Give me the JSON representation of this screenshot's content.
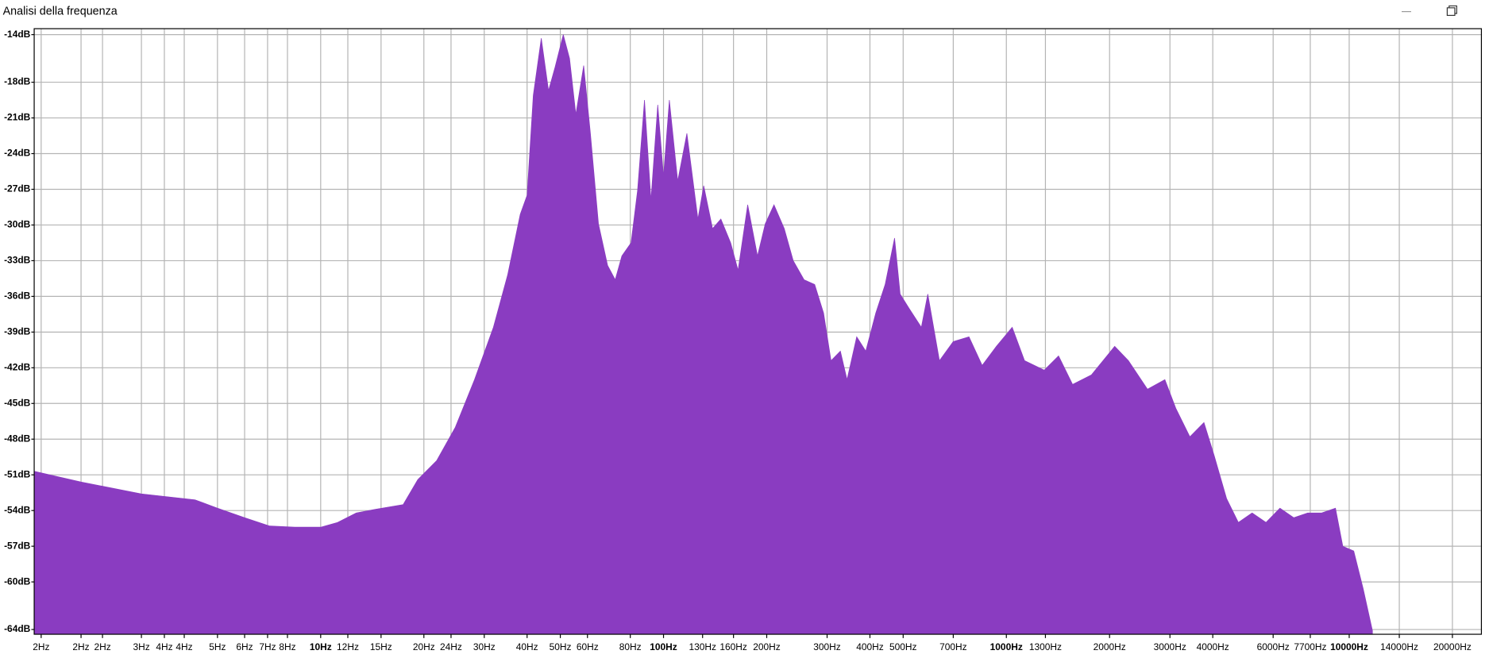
{
  "chart_data": {
    "type": "area",
    "title": "Analisi della frequenza",
    "xscale": "log",
    "grid": true,
    "color": "#8a3cc1",
    "xlim": [
      1.46,
      24300
    ],
    "ylim": [
      -64.4,
      -13.5
    ],
    "x": [
      1.46,
      2,
      3,
      4.3,
      5.0,
      6,
      7.1,
      8.4,
      10,
      11.2,
      12.7,
      14.4,
      17.4,
      19.2,
      21.8,
      24.7,
      28.1,
      31.9,
      35.1,
      38.2,
      40,
      41.7,
      44,
      46.2,
      48.3,
      51,
      53.2,
      55.5,
      58.5,
      61.2,
      64.6,
      68.7,
      72.3,
      75.6,
      80.4,
      84,
      88,
      91.9,
      96.2,
      100,
      104,
      110,
      117,
      126,
      131,
      139,
      147,
      157,
      165,
      176,
      188,
      198,
      210,
      225,
      239,
      257,
      276,
      293,
      308,
      328,
      343,
      366,
      389,
      416,
      443,
      472,
      490,
      520,
      565,
      590,
      638,
      700,
      778,
      850,
      935,
      1040,
      1130,
      1290,
      1420,
      1560,
      1770,
      2070,
      2270,
      2580,
      2900,
      3120,
      3430,
      3770,
      4040,
      4390,
      4750,
      5210,
      5720,
      6280,
      6890,
      7570,
      8310,
      9120,
      9580,
      10310,
      10990,
      11690
    ],
    "values": [
      -50.7,
      -51.6,
      -52.6,
      -53.1,
      -53.8,
      -54.6,
      -55.3,
      -55.4,
      -55.4,
      -55.0,
      -54.2,
      -53.9,
      -53.5,
      -51.4,
      -49.8,
      -47.0,
      -43.0,
      -38.6,
      -34.2,
      -29.1,
      -27.5,
      -19.1,
      -14.3,
      -18.7,
      -16.7,
      -14.0,
      -16.0,
      -20.7,
      -16.6,
      -22.3,
      -29.9,
      -33.4,
      -34.6,
      -32.6,
      -31.5,
      -27.1,
      -19.5,
      -27.9,
      -19.9,
      -25.9,
      -19.5,
      -26.3,
      -22.3,
      -29.5,
      -26.7,
      -30.3,
      -29.5,
      -31.5,
      -33.8,
      -28.3,
      -32.6,
      -29.9,
      -28.3,
      -30.3,
      -33.0,
      -34.6,
      -35.0,
      -37.4,
      -41.4,
      -40.6,
      -43.0,
      -39.4,
      -40.6,
      -37.4,
      -35.0,
      -31.1,
      -35.8,
      -37.0,
      -38.6,
      -35.8,
      -41.4,
      -39.8,
      -39.4,
      -41.8,
      -40.2,
      -38.6,
      -41.4,
      -42.2,
      -41.0,
      -43.4,
      -42.6,
      -40.2,
      -41.4,
      -43.8,
      -43.0,
      -45.4,
      -47.8,
      -46.6,
      -49.4,
      -53.0,
      -55.0,
      -54.2,
      -55.0,
      -53.8,
      -54.6,
      -54.2,
      -54.2,
      -53.8,
      -57.0,
      -57.4,
      -60.6,
      -64.1
    ],
    "yticks": [
      {
        "value": -14,
        "label": "-14dB"
      },
      {
        "value": -18,
        "label": "-18dB"
      },
      {
        "value": -21,
        "label": "-21dB"
      },
      {
        "value": -24,
        "label": "-24dB"
      },
      {
        "value": -27,
        "label": "-27dB"
      },
      {
        "value": -30,
        "label": "-30dB"
      },
      {
        "value": -33,
        "label": "-33dB"
      },
      {
        "value": -36,
        "label": "-36dB"
      },
      {
        "value": -39,
        "label": "-39dB"
      },
      {
        "value": -42,
        "label": "-42dB"
      },
      {
        "value": -45,
        "label": "-45dB"
      },
      {
        "value": -48,
        "label": "-48dB"
      },
      {
        "value": -51,
        "label": "-51dB"
      },
      {
        "value": -54,
        "label": "-54dB"
      },
      {
        "value": -57,
        "label": "-57dB"
      },
      {
        "value": -60,
        "label": "-60dB"
      },
      {
        "value": -64,
        "label": "-64dB"
      }
    ],
    "xticks": [
      {
        "value": 1.53,
        "label": "2Hz"
      },
      {
        "value": 2,
        "label": "2Hz"
      },
      {
        "value": 2.31,
        "label": "2Hz"
      },
      {
        "value": 3,
        "label": "3Hz"
      },
      {
        "value": 3.5,
        "label": "4Hz"
      },
      {
        "value": 4,
        "label": "4Hz"
      },
      {
        "value": 5,
        "label": "5Hz"
      },
      {
        "value": 6,
        "label": "6Hz"
      },
      {
        "value": 7,
        "label": "7Hz"
      },
      {
        "value": 8,
        "label": "8Hz"
      },
      {
        "value": 10,
        "label": "10Hz"
      },
      {
        "value": 12,
        "label": "12Hz"
      },
      {
        "value": 15,
        "label": "15Hz"
      },
      {
        "value": 20,
        "label": "20Hz"
      },
      {
        "value": 24,
        "label": "24Hz"
      },
      {
        "value": 30,
        "label": "30Hz"
      },
      {
        "value": 40,
        "label": "40Hz"
      },
      {
        "value": 50,
        "label": "50Hz"
      },
      {
        "value": 60,
        "label": "60Hz"
      },
      {
        "value": 80,
        "label": "80Hz"
      },
      {
        "value": 100,
        "label": "100Hz"
      },
      {
        "value": 130,
        "label": "130Hz"
      },
      {
        "value": 160,
        "label": "160Hz"
      },
      {
        "value": 200,
        "label": "200Hz"
      },
      {
        "value": 300,
        "label": "300Hz"
      },
      {
        "value": 400,
        "label": "400Hz"
      },
      {
        "value": 500,
        "label": "500Hz"
      },
      {
        "value": 700,
        "label": "700Hz"
      },
      {
        "value": 1000,
        "label": "1000Hz"
      },
      {
        "value": 1300,
        "label": "1300Hz"
      },
      {
        "value": 2000,
        "label": "2000Hz"
      },
      {
        "value": 3000,
        "label": "3000Hz"
      },
      {
        "value": 4000,
        "label": "4000Hz"
      },
      {
        "value": 6000,
        "label": "6000Hz"
      },
      {
        "value": 7700,
        "label": "7700Hz"
      },
      {
        "value": 10000,
        "label": "10000Hz"
      },
      {
        "value": 14000,
        "label": "14000Hz"
      },
      {
        "value": 20000,
        "label": "20000Hz"
      }
    ]
  }
}
